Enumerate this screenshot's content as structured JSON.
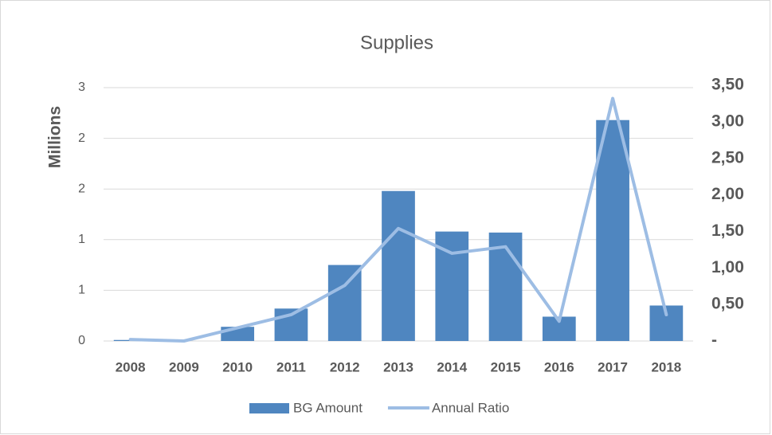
{
  "chart_data": {
    "type": "bar-line",
    "title": "Supplies",
    "ylabel": "Millions",
    "categories": [
      "2008",
      "2009",
      "2010",
      "2011",
      "2012",
      "2013",
      "2014",
      "2015",
      "2016",
      "2017",
      "2018"
    ],
    "series": [
      {
        "name": "BG Amount",
        "type": "bar",
        "color": "#4f86c0",
        "values": [
          0.01,
          0,
          0.14,
          0.32,
          0.75,
          1.48,
          1.08,
          1.07,
          0.24,
          2.18,
          0.35
        ]
      },
      {
        "name": "Annual Ratio",
        "type": "line",
        "axis": "y2",
        "color": "#9dbde4",
        "values": [
          0.02,
          0,
          0.18,
          0.36,
          0.76,
          1.54,
          1.2,
          1.29,
          0.27,
          3.32,
          0.36
        ]
      }
    ],
    "ylim": [
      0,
      2.5
    ],
    "yticks": [
      0,
      {
        "value": 0.5,
        "label": "1"
      },
      {
        "value": 1,
        "label": "1"
      },
      {
        "value": 1.5,
        "label": "2"
      },
      {
        "value": 2,
        "label": "2"
      },
      {
        "value": 2.5,
        "label": "3"
      }
    ],
    "y2lim": [
      0,
      3.5
    ],
    "y2ticks": [
      {
        "value": 0,
        "label": "-"
      },
      {
        "value": 0.5,
        "label": "0,50"
      },
      {
        "value": 1,
        "label": "1,00"
      },
      {
        "value": 1.5,
        "label": "1,50"
      },
      {
        "value": 2,
        "label": "2,00"
      },
      {
        "value": 2.5,
        "label": "2,50"
      },
      {
        "value": 3,
        "label": "3,00"
      },
      {
        "value": 3.5,
        "label": "3,50"
      }
    ],
    "grid": true,
    "legend": "bottom"
  }
}
